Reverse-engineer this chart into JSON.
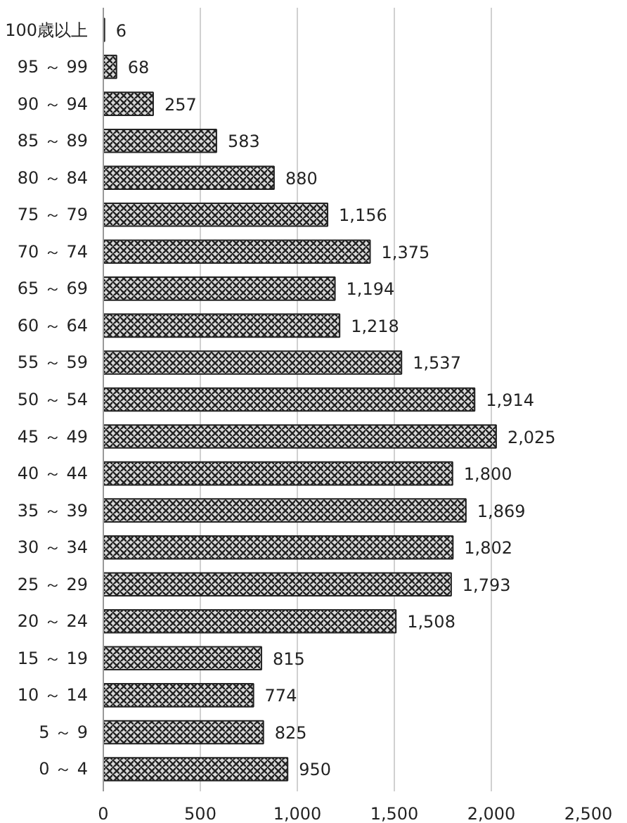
{
  "chart_data": {
    "type": "bar",
    "orientation": "horizontal",
    "categories": [
      "100歳以上",
      "95 ～ 99",
      "90 ～ 94",
      "85 ～ 89",
      "80 ～ 84",
      "75 ～ 79",
      "70 ～ 74",
      "65 ～ 69",
      "60 ～ 64",
      "55 ～ 59",
      "50 ～ 54",
      "45 ～ 49",
      "40 ～ 44",
      "35 ～ 39",
      "30 ～ 34",
      "25 ～ 29",
      "20 ～ 24",
      "15 ～ 19",
      "10 ～ 14",
      "5 ～ 9",
      "0 ～ 4"
    ],
    "values": [
      6,
      68,
      257,
      583,
      880,
      1156,
      1375,
      1194,
      1218,
      1537,
      1914,
      2025,
      1800,
      1869,
      1802,
      1793,
      1508,
      815,
      774,
      825,
      950
    ],
    "value_labels": [
      "6",
      "68",
      "257",
      "583",
      "880",
      "1,156",
      "1,375",
      "1,194",
      "1,218",
      "1,537",
      "1,914",
      "2,025",
      "1,800",
      "1,869",
      "1,802",
      "1,793",
      "1,508",
      "815",
      "774",
      "825",
      "950"
    ],
    "color": "#222222",
    "xlim": [
      0,
      2500
    ],
    "xticks": [
      0,
      500,
      {
        "value": 1000,
        "label": "1,000"
      },
      {
        "value": 1500,
        "label": "1,500"
      },
      {
        "value": 2000,
        "label": "2,000"
      },
      {
        "value": 2500,
        "label": "2,500"
      }
    ],
    "grid": "x"
  }
}
